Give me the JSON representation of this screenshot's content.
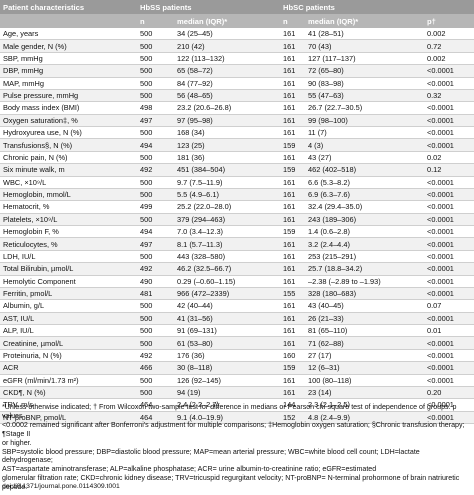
{
  "header": {
    "characteristics": "Patient characteristics",
    "hbss": "HbSS patients",
    "hbsc": "HbSC patients",
    "n": "n",
    "median": "median (IQR)*",
    "p": "p†"
  },
  "rows": [
    {
      "label": "Age, years",
      "n1": "500",
      "m1": "34 (25–45)",
      "n2": "161",
      "m2": "41 (28–51)",
      "p": "0.002"
    },
    {
      "label": "Male gender, N (%)",
      "n1": "500",
      "m1": "210 (42)",
      "n2": "161",
      "m2": "70 (43)",
      "p": "0.72"
    },
    {
      "label": "SBP, mmHg",
      "n1": "500",
      "m1": "122 (113–132)",
      "n2": "161",
      "m2": "127 (117–137)",
      "p": "0.002"
    },
    {
      "label": "DBP, mmHg",
      "n1": "500",
      "m1": "65 (58–72)",
      "n2": "161",
      "m2": "72 (65–80)",
      "p": "<0.0001"
    },
    {
      "label": "MAP, mmHg",
      "n1": "500",
      "m1": "84 (77–92)",
      "n2": "161",
      "m2": "90 (83–98)",
      "p": "<0.0001"
    },
    {
      "label": "Pulse pressure, mmHg",
      "n1": "500",
      "m1": "56 (48–65)",
      "n2": "161",
      "m2": "55 (47–63)",
      "p": "0.32"
    },
    {
      "label": "Body mass index (BMI)",
      "n1": "498",
      "m1": "23.2 (20.6–26.8)",
      "n2": "161",
      "m2": "26.7 (22.7–30.5)",
      "p": "<0.0001"
    },
    {
      "label": "Oxygen saturation‡, %",
      "n1": "497",
      "m1": "97 (95–98)",
      "n2": "161",
      "m2": "99 (98–100)",
      "p": "<0.0001"
    },
    {
      "label": "Hydroxyurea use, N (%)",
      "n1": "500",
      "m1": "168 (34)",
      "n2": "161",
      "m2": "11 (7)",
      "p": "<0.0001"
    },
    {
      "label": "Transfusions§, N (%)",
      "n1": "494",
      "m1": "123 (25)",
      "n2": "159",
      "m2": "4 (3)",
      "p": "<0.0001"
    },
    {
      "label": "Chronic pain, N (%)",
      "n1": "500",
      "m1": "181 (36)",
      "n2": "161",
      "m2": "43 (27)",
      "p": "0.02"
    },
    {
      "label": "Six minute walk, m",
      "n1": "492",
      "m1": "451 (384–504)",
      "n2": "159",
      "m2": "462 (402–518)",
      "p": "0.12"
    },
    {
      "label": "WBC, ×10⁹/L",
      "n1": "500",
      "m1": "9.7 (7.5–11.9)",
      "n2": "161",
      "m2": "6.6 (5.3–8.2)",
      "p": "<0.0001"
    },
    {
      "label": "Hemoglobin, mmol/L",
      "n1": "500",
      "m1": "5.5 (4.9–6.1)",
      "n2": "161",
      "m2": "6.9 (6.3–7.6)",
      "p": "<0.0001"
    },
    {
      "label": "Hematocrit, %",
      "n1": "499",
      "m1": "25.2 (22.0–28.0)",
      "n2": "161",
      "m2": "32.4 (29.4–35.0)",
      "p": "<0.0001"
    },
    {
      "label": "Platelets, ×10⁹/L",
      "n1": "500",
      "m1": "379 (294–463)",
      "n2": "161",
      "m2": "243 (189–306)",
      "p": "<0.0001"
    },
    {
      "label": "Hemoglobin F, %",
      "n1": "494",
      "m1": "7.0 (3.4–12.3)",
      "n2": "159",
      "m2": "1.4 (0.6–2.8)",
      "p": "<0.0001"
    },
    {
      "label": "Reticulocytes, %",
      "n1": "497",
      "m1": "8.1 (5.7–11.3)",
      "n2": "161",
      "m2": "3.2 (2.4–4.4)",
      "p": "<0.0001"
    },
    {
      "label": "LDH, IU/L",
      "n1": "500",
      "m1": "443 (328–580)",
      "n2": "161",
      "m2": "253 (215–291)",
      "p": "<0.0001"
    },
    {
      "label": "Total Bilirubin, µmol/L",
      "n1": "492",
      "m1": "46.2 (32.5–66.7)",
      "n2": "161",
      "m2": "25.7 (18.8–34.2)",
      "p": "<0.0001"
    },
    {
      "label": "Hemolytic Component",
      "n1": "490",
      "m1": "0.29 (–0.60–1.15)",
      "n2": "161",
      "m2": "–2.38 (–2.89 to –1.93)",
      "p": "<0.0001"
    },
    {
      "label": "Ferritin, pmol/L",
      "n1": "481",
      "m1": "966 (472–2339)",
      "n2": "155",
      "m2": "328 (180–683)",
      "p": "<0.0001"
    },
    {
      "label": "Albumin, g/L",
      "n1": "500",
      "m1": "42 (40–44)",
      "n2": "161",
      "m2": "43 (40–45)",
      "p": "0.07"
    },
    {
      "label": "AST, IU/L",
      "n1": "500",
      "m1": "41 (31–56)",
      "n2": "161",
      "m2": "26 (21–33)",
      "p": "<0.0001"
    },
    {
      "label": "ALP, IU/L",
      "n1": "500",
      "m1": "91 (69–131)",
      "n2": "161",
      "m2": "81 (65–110)",
      "p": "0.01"
    },
    {
      "label": "Creatinine, µmol/L",
      "n1": "500",
      "m1": "61 (53–80)",
      "n2": "161",
      "m2": "71 (62–88)",
      "p": "<0.0001"
    },
    {
      "label": "Proteinuria, N (%)",
      "n1": "492",
      "m1": "176 (36)",
      "n2": "160",
      "m2": "27 (17)",
      "p": "<0.0001"
    },
    {
      "label": "ACR",
      "n1": "466",
      "m1": "30 (8–118)",
      "n2": "159",
      "m2": "12 (6–31)",
      "p": "<0.0001"
    },
    {
      "label": "eGFR (ml/min/1.73 m²)",
      "n1": "500",
      "m1": "126 (92–145)",
      "n2": "161",
      "m2": "100 (80–118)",
      "p": "<0.0001"
    },
    {
      "label": "CKD¶, N (%)",
      "n1": "500",
      "m1": "94 (19)",
      "n2": "161",
      "m2": "23 (14)",
      "p": "0.20"
    },
    {
      "label": "TRV, m/s",
      "n1": "464",
      "m1": "2.4 (2.2–2.7)",
      "n2": "144",
      "m2": "2.3 (2.1–2.5)",
      "p": "<0.0001"
    },
    {
      "label": "NT-proBNP, pmol/L",
      "n1": "464",
      "m1": "9.1 (4.0–19.9)",
      "n2": "152",
      "m2": "4.8 (2.4–9.9)",
      "p": "<0.0001"
    }
  ],
  "footnotes": [
    "*Unless otherwise indicated; † From Wilcoxon two-sample test for difference in medians or Pearson chi-square test of independence of groups. p values",
    "<0.0002 remained significant after Bonferroni's adjustment for multiple comparisons; ‡Hemoglobin oxygen saturation; §Chronic transfusion therapy; ¶Stage II",
    "or higher.",
    "SBP=systolic blood pressure; DBP=diastolic blood pressure; MAP=mean arterial pressure; WBC=white blood cell count; LDH=lactate dehydrogenase;",
    "AST=aspartate aminotransferase; ALP=alkaline phosphatase; ACR= urine albumin-to-creatinine ratio; eGFR=estimated",
    "glomerular filtration rate; CKD=chronic kidney disease; TRV=tricuspid regurgitant velocity; NT-proBNP= N-terminal prohormone of brain natriuretic",
    "peptide."
  ],
  "doi": "doi:10.1371/journal.pone.0114309.t001"
}
